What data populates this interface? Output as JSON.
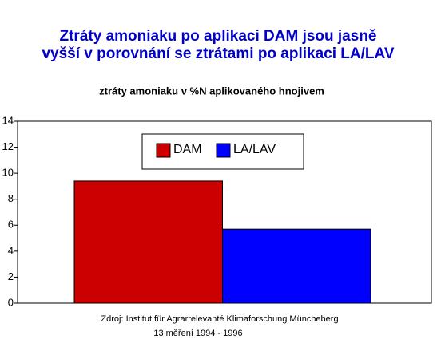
{
  "chart_data": {
    "type": "bar",
    "title": [
      "Ztráty amoniaku po aplikaci DAM jsou jasně",
      "vyšší v porovnání se ztrátami po aplikaci LA/LAV"
    ],
    "subtitle": "ztráty amoniaku v %N aplikovaného hnojivem",
    "categories": [
      null
    ],
    "series": [
      {
        "name": "DAM",
        "color": "#cc0000",
        "values": [
          9.4
        ]
      },
      {
        "name": "LA/LAV",
        "color": "#0000ff",
        "values": [
          5.7
        ]
      }
    ],
    "ylim": [
      0,
      14
    ],
    "yticks": [
      0,
      2,
      4,
      6,
      8,
      10,
      12,
      14
    ],
    "grid": false,
    "legend": "top",
    "source": [
      "Zdroj: Institut für Agrarrelevanté Klimaforschung Müncheberg",
      "13 měření 1994 - 1996"
    ]
  }
}
